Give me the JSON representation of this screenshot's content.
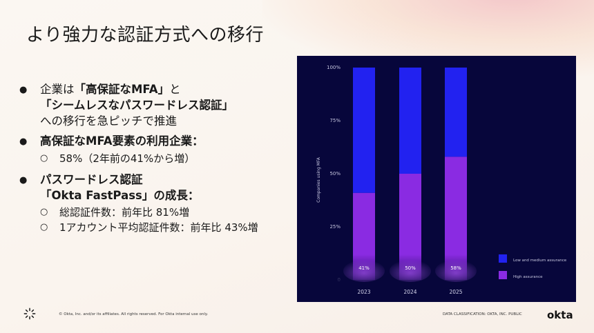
{
  "slide": {
    "title": "より強力な認証方式への移行"
  },
  "bullets": {
    "b1": {
      "pre": "企業は",
      "bold1": "「高保証なMFA」",
      "mid": "と",
      "bold2": "「シームレスなパスワードレス認証」",
      "post": "への移行を急ピッチで推進"
    },
    "b2": {
      "label": "高保証なMFA要素の利用企業：",
      "sub": [
        "58%（2年前の41%から増）"
      ]
    },
    "b3": {
      "line1": "パスワードレス認証",
      "line2": "「Okta FastPass」の成長：",
      "sub": [
        "総認証件数：前年比 81%増",
        "1アカウント平均認証件数：前年比 43%増"
      ]
    }
  },
  "chart_data": {
    "type": "bar",
    "stacked": true,
    "categories": [
      "2023",
      "2024",
      "2025"
    ],
    "series": [
      {
        "name": "High assurance",
        "values": [
          41,
          50,
          58
        ],
        "color": "#8a2be2"
      },
      {
        "name": "Low and medium assurance",
        "values": [
          59,
          50,
          42
        ],
        "color": "#2222f0"
      }
    ],
    "data_labels": [
      "41%",
      "50%",
      "58%"
    ],
    "ylabel": "Companies using MFA",
    "ylim": [
      0,
      100
    ],
    "yticks": [
      "0",
      "25%",
      "50%",
      "75%",
      "100%"
    ],
    "yticks_values": [
      0,
      25,
      50,
      75,
      100
    ],
    "legend_position": "bottom-right",
    "background": "#07063b"
  },
  "footer": {
    "copyright": "© Okta, Inc. and/or its affiliates. All rights reserved. For Okta internal use only.",
    "classification": "DATA CLASSIFICATION: OKTA, INC. PUBLIC",
    "logo": "okta"
  },
  "icons": {
    "bullet": "●",
    "sub_bullet": "○",
    "logo_mark": "okta-sunburst-icon"
  }
}
